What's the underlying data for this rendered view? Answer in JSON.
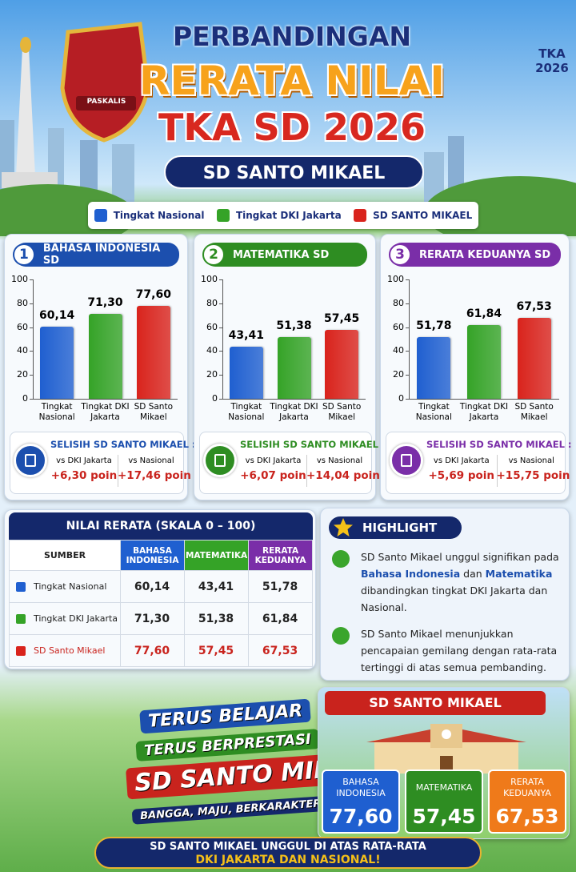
{
  "header": {
    "logo_text": "PASKALIS",
    "badge": "TKA\n2026",
    "title_1": "PERBANDINGAN",
    "title_2": "RERATA NILAI",
    "title_3": "TKA SD 2026",
    "school": "SD SANTO MIKAEL"
  },
  "legend": [
    {
      "name": "Tingkat Nasional",
      "color": "#1f5fd0"
    },
    {
      "name": "Tingkat DKI Jakarta",
      "color": "#35a327"
    },
    {
      "name": "SD SANTO MIKAEL",
      "color": "#d9231c"
    }
  ],
  "chart_data": [
    {
      "type": "bar",
      "number": "1",
      "title": "BAHASA INDONESIA SD",
      "header_color": "#1c4fae",
      "categories": [
        "Tingkat Nasional",
        "Tingkat DKI Jakarta",
        "SD Santo Mikael"
      ],
      "values": [
        60.14,
        71.3,
        77.6
      ],
      "value_labels": [
        "60,14",
        "71,30",
        "77,60"
      ],
      "colors": [
        "#1f5fd0",
        "#35a327",
        "#d9231c"
      ],
      "ylim": [
        0,
        100
      ],
      "yticks": [
        0,
        20,
        40,
        60,
        80,
        100
      ],
      "selisih": {
        "title": "SELISIH SD SANTO MIKAEL :",
        "items": [
          {
            "label": "vs DKI Jakarta",
            "value": "+6,30 poin"
          },
          {
            "label": "vs Nasional",
            "value": "+17,46 poin"
          }
        ]
      }
    },
    {
      "type": "bar",
      "number": "2",
      "title": "MATEMATIKA SD",
      "header_color": "#2e8d22",
      "categories": [
        "Tingkat Nasional",
        "Tingkat DKI Jakarta",
        "SD Santo Mikael"
      ],
      "values": [
        43.41,
        51.38,
        57.45
      ],
      "value_labels": [
        "43,41",
        "51,38",
        "57,45"
      ],
      "colors": [
        "#1f5fd0",
        "#35a327",
        "#d9231c"
      ],
      "ylim": [
        0,
        100
      ],
      "yticks": [
        0,
        20,
        40,
        60,
        80,
        100
      ],
      "selisih": {
        "title": "SELISIH SD SANTO MIKAEL :",
        "items": [
          {
            "label": "vs DKI Jakarta",
            "value": "+6,07 poin"
          },
          {
            "label": "vs Nasional",
            "value": "+14,04 poin"
          }
        ]
      }
    },
    {
      "type": "bar",
      "number": "3",
      "title": "RERATA KEDUANYA SD",
      "header_color": "#7a2ea8",
      "categories": [
        "Tingkat Nasional",
        "Tingkat DKI Jakarta",
        "SD Santo Mikael"
      ],
      "values": [
        51.78,
        61.84,
        67.53
      ],
      "value_labels": [
        "51,78",
        "61,84",
        "67,53"
      ],
      "colors": [
        "#1f5fd0",
        "#35a327",
        "#d9231c"
      ],
      "ylim": [
        0,
        100
      ],
      "yticks": [
        0,
        20,
        40,
        60,
        80,
        100
      ],
      "selisih": {
        "title": "SELISIH SD SANTO MIKAEL :",
        "items": [
          {
            "label": "vs DKI Jakarta",
            "value": "+5,69 poin"
          },
          {
            "label": "vs Nasional",
            "value": "+15,75 poin"
          }
        ]
      }
    }
  ],
  "table": {
    "title": "NILAI RERATA (SKALA 0 – 100)",
    "columns": [
      "SUMBER",
      "BAHASA INDONESIA",
      "MATEMATIKA",
      "RERATA KEDUANYA"
    ],
    "rows": [
      [
        "Tingkat Nasional",
        "60,14",
        "43,41",
        "51,78"
      ],
      [
        "Tingkat DKI Jakarta",
        "71,30",
        "51,38",
        "61,84"
      ],
      [
        "SD Santo Mikael",
        "77,60",
        "57,45",
        "67,53"
      ]
    ]
  },
  "highlight": {
    "title": "HIGHLIGHT",
    "bullets": [
      [
        {
          "text": "SD Santo Mikael unggul signifikan pada "
        },
        {
          "text": "Bahasa Indonesia",
          "bold": true
        },
        {
          "text": " dan "
        },
        {
          "text": "Matematika",
          "bold": true
        },
        {
          "text": " dibandingkan tingkat DKI Jakarta dan Nasional."
        }
      ],
      [
        {
          "text": "SD Santo Mikael menunjukkan pencapaian gemilang dengan rata-rata tertinggi di atas semua pembanding."
        }
      ]
    ]
  },
  "slogan": [
    "TERUS BELAJAR",
    "TERUS BERPRESTASI",
    "SD SANTO MIKAEL",
    "BANGGA, MAJU, BERKARAKTER!"
  ],
  "summary": {
    "title": "SD SANTO MIKAEL",
    "boxes": [
      {
        "label": "BAHASA INDONESIA",
        "value": "77,60"
      },
      {
        "label": "MATEMATIKA",
        "value": "57,45"
      },
      {
        "label": "RERATA KEDUANYA",
        "value": "67,53"
      }
    ]
  },
  "footer": [
    "SD SANTO MIKAEL UNGGUL DI ATAS RATA-RATA",
    "DKI JAKARTA DAN NASIONAL!"
  ]
}
